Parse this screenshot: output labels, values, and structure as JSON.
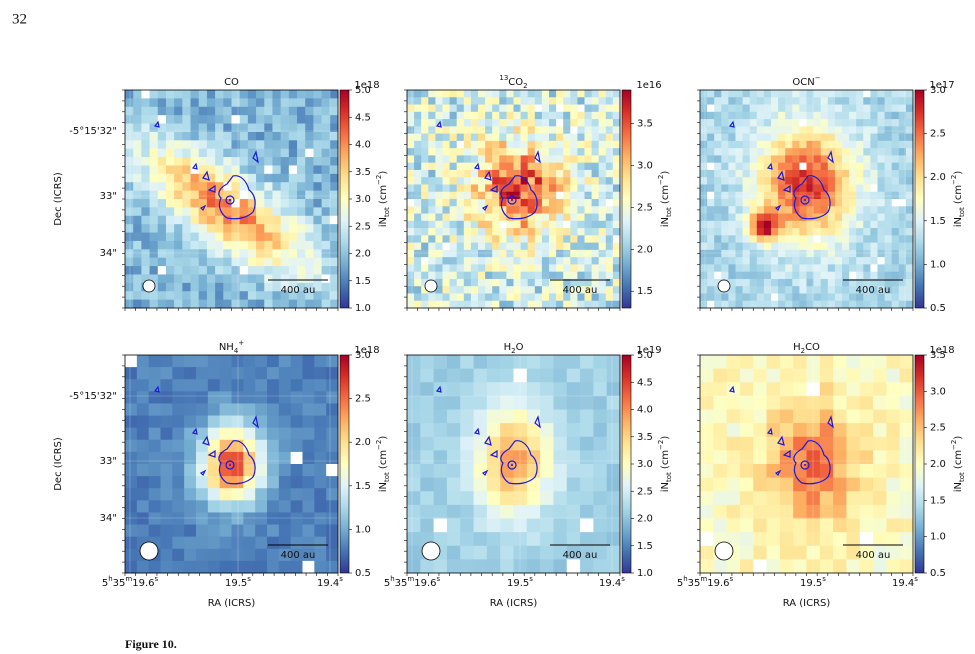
{
  "page_number": "32",
  "y_label": "Dec (ICRS)",
  "x_label": "RA (ICRS)",
  "y_ticks": [
    "-5°15'32\"",
    "33\"",
    "34\""
  ],
  "x_ticks": [
    [
      {
        "text": "5"
      },
      {
        "text": "h",
        "pos": "sup"
      },
      {
        "text": "35"
      },
      {
        "text": "m",
        "pos": "sup"
      },
      {
        "text": "19.6"
      },
      {
        "text": "s",
        "pos": "sup"
      }
    ],
    [
      {
        "text": "19.5"
      },
      {
        "text": "s",
        "pos": "sup"
      }
    ],
    [
      {
        "text": "19.4"
      },
      {
        "text": "s",
        "pos": "sup"
      }
    ]
  ],
  "scale_bar": "400 au",
  "colorbar_label": [
    {
      "text": "iN"
    },
    {
      "text": "tot",
      "pos": "sub"
    },
    {
      "text": "  (cm"
    },
    {
      "text": "−2",
      "pos": "sup"
    },
    {
      "text": ")"
    }
  ],
  "caption": "Figure 10.",
  "panels": [
    {
      "title_parts": [
        {
          "text": "CO"
        }
      ],
      "multiplier": "1e18",
      "clim": [
        1.0,
        5.0
      ],
      "cticks": [
        {
          "value": 1,
          "label": "1.0"
        },
        1.5,
        {
          "value": 2,
          "label": "2.0"
        },
        2.5,
        {
          "value": 3,
          "label": "3.0"
        },
        3.5,
        {
          "value": 4,
          "label": "4.0"
        },
        4.5,
        {
          "value": 5,
          "label": "5.0"
        }
      ]
    },
    {
      "title_parts": [
        {
          "text": "13",
          "pos": "sup"
        },
        {
          "text": "CO"
        },
        {
          "text": "2",
          "pos": "sub"
        }
      ],
      "multiplier": "1e16",
      "clim": [
        1.3,
        3.9
      ],
      "cticks": [
        1.5,
        {
          "value": 2,
          "label": "2.0"
        },
        2.5,
        {
          "value": 3,
          "label": "3.0"
        },
        3.5
      ]
    },
    {
      "title_parts": [
        {
          "text": "OCN"
        },
        {
          "text": "−",
          "pos": "sup"
        }
      ],
      "multiplier": "1e17",
      "clim": [
        0.5,
        3.0
      ],
      "cticks": [
        0.5,
        {
          "value": 1,
          "label": "1.0"
        },
        1.5,
        {
          "value": 2,
          "label": "2.0"
        },
        2.5,
        {
          "value": 3,
          "label": "3.0"
        }
      ]
    },
    {
      "title_parts": [
        {
          "text": "NH"
        },
        {
          "text": "4",
          "pos": "sub"
        },
        {
          "text": "+",
          "pos": "sup"
        }
      ],
      "multiplier": "1e18",
      "clim": [
        0.5,
        3.0
      ],
      "cticks": [
        0.5,
        {
          "value": 1,
          "label": "1.0"
        },
        1.5,
        {
          "value": 2,
          "label": "2.0"
        },
        2.5,
        {
          "value": 3,
          "label": "3.0"
        }
      ]
    },
    {
      "title_parts": [
        {
          "text": "H"
        },
        {
          "text": "2",
          "pos": "sub"
        },
        {
          "text": "O"
        }
      ],
      "multiplier": "1e19",
      "clim": [
        1.0,
        5.0
      ],
      "cticks": [
        {
          "value": 1,
          "label": "1.0"
        },
        1.5,
        {
          "value": 2,
          "label": "2.0"
        },
        2.5,
        {
          "value": 3,
          "label": "3.0"
        },
        3.5,
        {
          "value": 4,
          "label": "4.0"
        },
        4.5,
        {
          "value": 5,
          "label": "5.0"
        }
      ]
    },
    {
      "title_parts": [
        {
          "text": "H"
        },
        {
          "text": "2",
          "pos": "sub"
        },
        {
          "text": "CO"
        }
      ],
      "multiplier": "1e18",
      "clim": [
        0.5,
        3.5
      ],
      "cticks": [
        0.5,
        {
          "value": 1,
          "label": "1.0"
        },
        1.5,
        {
          "value": 2,
          "label": "2.0"
        },
        2.5,
        {
          "value": 3,
          "label": "3.0"
        },
        3.5
      ]
    }
  ]
}
